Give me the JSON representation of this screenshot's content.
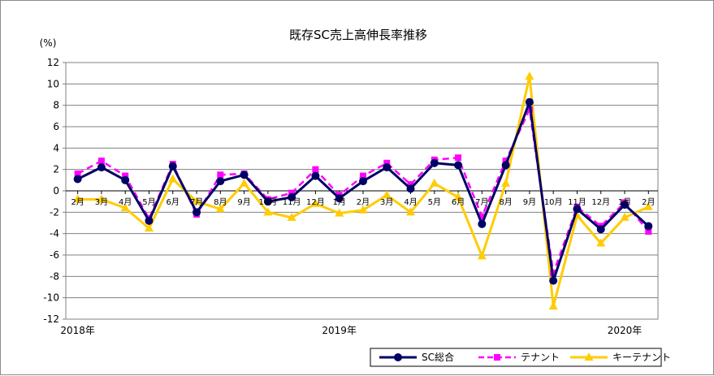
{
  "chart_data": {
    "type": "line",
    "title": "既存SC売上高伸長率推移",
    "ylabel": "(%)",
    "ylim": [
      -12,
      12
    ],
    "yticks": [
      12,
      10,
      8,
      6,
      4,
      2,
      0,
      -2,
      -4,
      -6,
      -8,
      -10,
      -12
    ],
    "grid": true,
    "legend_position": "bottom-right",
    "categories": [
      "2月",
      "3月",
      "4月",
      "5月",
      "6月",
      "7月",
      "8月",
      "9月",
      "10月",
      "11月",
      "12月",
      "1月",
      "2月",
      "3月",
      "4月",
      "5月",
      "6月",
      "7月",
      "8月",
      "9月",
      "10月",
      "11月",
      "12月",
      "1月",
      "2月"
    ],
    "year_labels": [
      {
        "label": "2018年",
        "index": 0
      },
      {
        "label": "2019年",
        "index": 11
      },
      {
        "label": "2020年",
        "index": 23
      }
    ],
    "series": [
      {
        "name": "SC総合",
        "color": "#000066",
        "marker": "circle",
        "dash": "solid",
        "values": [
          1.1,
          2.2,
          1.0,
          -2.8,
          2.3,
          -2.0,
          0.9,
          1.5,
          -1.0,
          -0.6,
          1.4,
          -0.7,
          0.9,
          2.2,
          0.2,
          2.6,
          2.4,
          -3.1,
          2.4,
          8.3,
          -8.4,
          -1.7,
          -3.6,
          -1.3,
          -3.3
        ]
      },
      {
        "name": "テナント",
        "color": "#ff00ff",
        "marker": "square",
        "dash": "dashed",
        "values": [
          1.6,
          2.8,
          1.4,
          -2.6,
          2.5,
          -2.2,
          1.5,
          1.6,
          -0.8,
          -0.2,
          2.0,
          -0.4,
          1.4,
          2.6,
          0.6,
          2.9,
          3.1,
          -2.4,
          2.8,
          7.6,
          -7.7,
          -1.5,
          -3.3,
          -1.1,
          -3.8
        ]
      },
      {
        "name": "キーテナント",
        "color": "#ffcc00",
        "marker": "triangle",
        "dash": "solid",
        "values": [
          -0.8,
          -0.8,
          -1.6,
          -3.5,
          1.1,
          -1.0,
          -1.7,
          0.7,
          -2.0,
          -2.5,
          -1.2,
          -2.1,
          -1.8,
          -0.4,
          -2.0,
          0.7,
          -0.6,
          -6.1,
          0.7,
          10.7,
          -10.8,
          -2.3,
          -4.9,
          -2.5,
          -1.5
        ]
      }
    ]
  }
}
